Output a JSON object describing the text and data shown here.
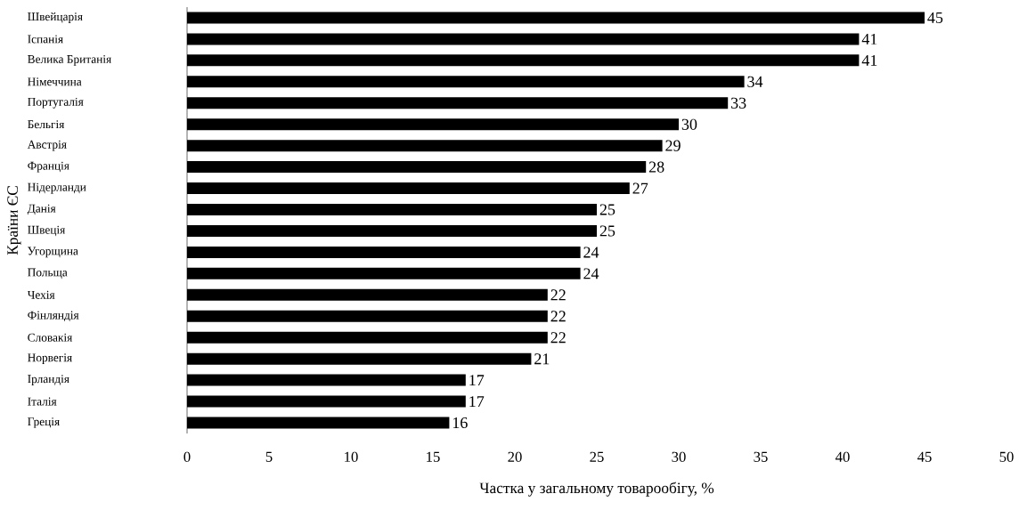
{
  "chart_data": {
    "type": "bar",
    "orientation": "horizontal",
    "xlabel": "Частка у загальному товарообігу, %",
    "ylabel": "Країни ЄС",
    "categories": [
      "Швейцарія",
      "Іспанія",
      "Велика Британія",
      "Німеччина",
      "Португалія",
      "Бельгія",
      "Австрія",
      "Франція",
      "Нідерланди",
      "Данія",
      "Швеція",
      "Угорщина",
      "Польща",
      "Чехія",
      "Фінляндія",
      "Словакія",
      "Норвегія",
      "Ірландія",
      "Італія",
      "Греція"
    ],
    "values": [
      45,
      41,
      41,
      34,
      33,
      30,
      29,
      28,
      27,
      25,
      25,
      24,
      24,
      22,
      22,
      22,
      21,
      17,
      17,
      16
    ],
    "color": "#000000",
    "data_labels": true,
    "grid": false,
    "xlim": [
      0,
      50
    ],
    "xticks": [
      0,
      5,
      10,
      15,
      20,
      25,
      30,
      35,
      40,
      45,
      50
    ]
  }
}
